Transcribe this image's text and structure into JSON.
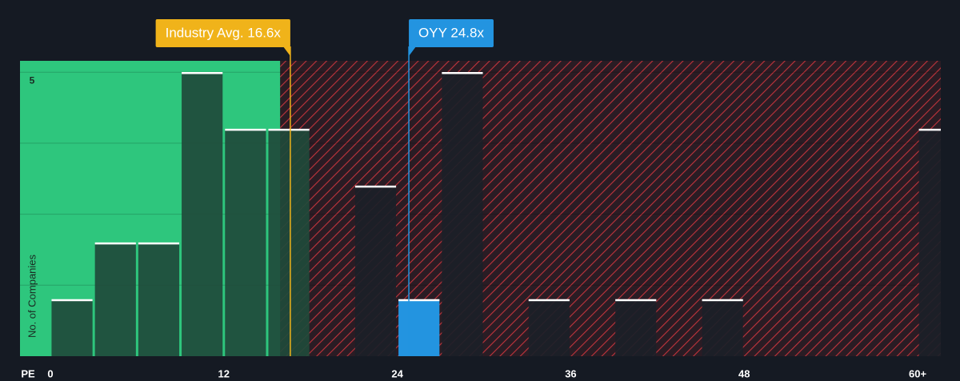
{
  "chart_data": {
    "type": "histogram",
    "x_label": "PE",
    "y_label": "No. of Companies",
    "bins": [
      0,
      3,
      6,
      9,
      12,
      15,
      18,
      21,
      24,
      27,
      30,
      33,
      36,
      39,
      42,
      45,
      48,
      51,
      54,
      57,
      60,
      63
    ],
    "counts": [
      1,
      2,
      2,
      5,
      4,
      4,
      0,
      3,
      1,
      5,
      0,
      1,
      0,
      1,
      0,
      1,
      0,
      0,
      0,
      0,
      4
    ],
    "xlim": [
      -2.1,
      61.6
    ],
    "xticks": [
      0,
      12,
      24,
      36,
      48,
      {
        "value": 60,
        "label": "60+"
      }
    ],
    "ylim": [
      0,
      5.2
    ],
    "yticks": [
      5
    ],
    "ygrid": [
      1.25,
      2.5,
      3.75,
      5
    ],
    "green_to": 15.9,
    "annotations": [
      {
        "label": "Industry Avg. 16.6x",
        "value": 16.6,
        "color": "#f0b31a"
      },
      {
        "label": "OYY 24.8x",
        "value": 24.8,
        "color": "#2394e0",
        "highlight": true
      }
    ]
  }
}
